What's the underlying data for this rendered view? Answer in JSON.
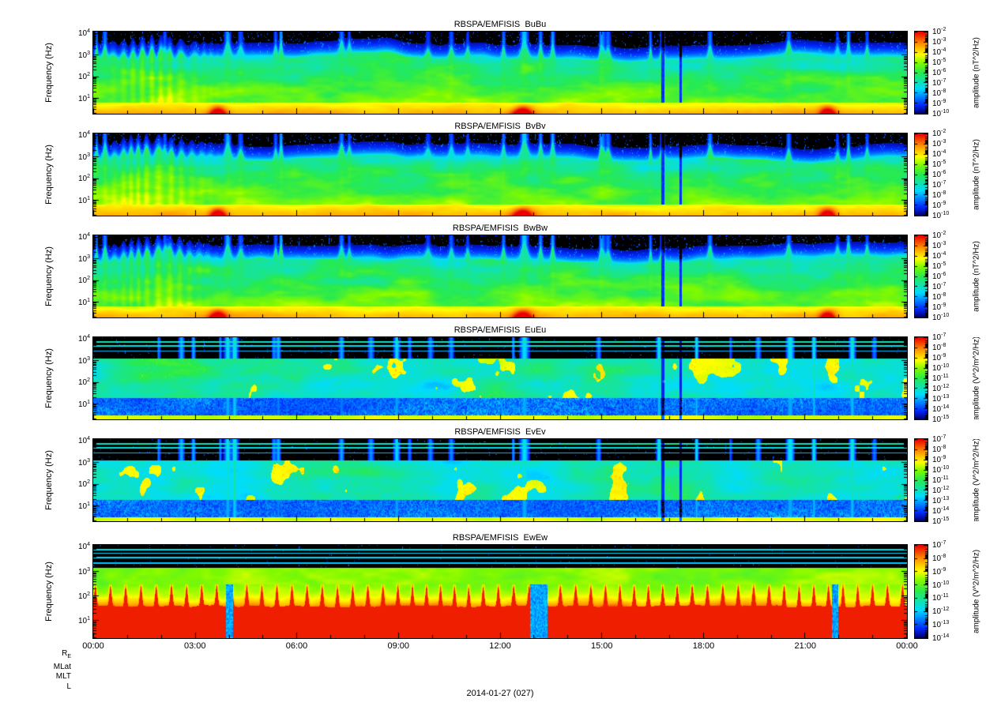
{
  "figure": {
    "date_label": "2014-01-27 (027)",
    "x_axis": {
      "ticks": [
        "00:00",
        "03:00",
        "06:00",
        "09:00",
        "12:00",
        "15:00",
        "18:00",
        "21:00",
        "00:00"
      ]
    },
    "ephemeris_labels": [
      "R_E",
      "MLat",
      "MLT",
      "L"
    ]
  },
  "y_axis": {
    "label": "Frequency (Hz)",
    "ticks": [
      "10^4",
      "10^3",
      "10^2",
      "10^1"
    ],
    "range_hz": [
      2,
      12000
    ]
  },
  "panels": [
    {
      "title": "RBSPA/EMFISIS  BuBu",
      "type": "B",
      "colorbar": {
        "label": "amplitude (nT^2/Hz)",
        "ticks": [
          "10^-2",
          "10^-3",
          "10^-4",
          "10^-5",
          "10^-6",
          "10^-7",
          "10^-8",
          "10^-9",
          "10^-10"
        ]
      }
    },
    {
      "title": "RBSPA/EMFISIS  BvBv",
      "type": "B",
      "colorbar": {
        "label": "amplitude (nT^2/Hz)",
        "ticks": [
          "10^-2",
          "10^-3",
          "10^-4",
          "10^-5",
          "10^-6",
          "10^-7",
          "10^-8",
          "10^-9",
          "10^-10"
        ]
      }
    },
    {
      "title": "RBSPA/EMFISIS  BwBw",
      "type": "B",
      "colorbar": {
        "label": "amplitude (nT^2/Hz)",
        "ticks": [
          "10^-2",
          "10^-3",
          "10^-4",
          "10^-5",
          "10^-6",
          "10^-7",
          "10^-8",
          "10^-9",
          "10^-10"
        ]
      }
    },
    {
      "title": "RBSPA/EMFISIS  EuEu",
      "type": "E",
      "colorbar": {
        "label": "amplitude (V^2/m^2/Hz)",
        "ticks": [
          "10^-7",
          "10^-8",
          "10^-9",
          "10^-10",
          "10^-11",
          "10^-12",
          "10^-13",
          "10^-14",
          "10^-15"
        ]
      }
    },
    {
      "title": "RBSPA/EMFISIS  EvEv",
      "type": "E",
      "colorbar": {
        "label": "amplitude (V^2/m^2/Hz)",
        "ticks": [
          "10^-7",
          "10^-8",
          "10^-9",
          "10^-10",
          "10^-11",
          "10^-12",
          "10^-13",
          "10^-14",
          "10^-15"
        ]
      }
    },
    {
      "title": "RBSPA/EMFISIS  EwEw",
      "type": "Ew",
      "colorbar": {
        "label": "amplitude (V^2/m^2/Hz)",
        "ticks": [
          "10^-7",
          "10^-8",
          "10^-9",
          "10^-10",
          "10^-11",
          "10^-12",
          "10^-13",
          "10^-14"
        ]
      }
    }
  ],
  "colors": {
    "background": "#ffffff",
    "axes": "#000000",
    "colormap": "rainbow (red=high, yellow, green, cyan, blue=low, black=below range)"
  },
  "chart_data": [
    {
      "type": "heatmap",
      "title": "RBSPA/EMFISIS  BuBu",
      "x": {
        "label": "UT 2014-01-27 (027)",
        "range_hours": [
          0,
          24
        ],
        "ticks": [
          "00:00",
          "03:00",
          "06:00",
          "09:00",
          "12:00",
          "15:00",
          "18:00",
          "21:00",
          "00:00"
        ]
      },
      "y": {
        "label": "Frequency (Hz)",
        "scale": "log",
        "range_hz": [
          2,
          12000
        ]
      },
      "z": {
        "label": "amplitude (nT^2/Hz)",
        "scale": "log",
        "min": "1e-10",
        "max": "1e-2"
      },
      "legend_position": "right colorbar",
      "grid": false,
      "features": [
        "yellow-orange band ~2-15 Hz across the full day (~1e-4..1e-3)",
        "red low-frequency enhancements near 03:40, 12:40 and 21:40 (~1e-2)",
        "diffuse green emission ~30-2000 Hz all day (~1e-6)",
        "quasi-periodic vertical striations 00:30-02:30 reaching ~3 kHz",
        "broadband blue/green bursts near 04:00, 06:30-07:30 and 12:40 reaching 10 kHz",
        "two narrow dropout notches near 16:50 and 17:20",
        "black background (below 1e-10) above ~3 kHz"
      ]
    },
    {
      "type": "heatmap",
      "title": "RBSPA/EMFISIS  BvBv",
      "x": {
        "label": "UT 2014-01-27 (027)",
        "range_hours": [
          0,
          24
        ],
        "ticks": [
          "00:00",
          "03:00",
          "06:00",
          "09:00",
          "12:00",
          "15:00",
          "18:00",
          "21:00",
          "00:00"
        ]
      },
      "y": {
        "label": "Frequency (Hz)",
        "scale": "log",
        "range_hz": [
          2,
          12000
        ]
      },
      "z": {
        "label": "amplitude (nT^2/Hz)",
        "scale": "log",
        "min": "1e-10",
        "max": "1e-2"
      },
      "legend_position": "right colorbar",
      "grid": false,
      "features": [
        "same morphology as BuBu: low-frequency yellow/red band, mid-frequency green emission, bursts near 04:00/12:40/21:40, dropouts near 17:00"
      ]
    },
    {
      "type": "heatmap",
      "title": "RBSPA/EMFISIS  BwBw",
      "x": {
        "label": "UT 2014-01-27 (027)",
        "range_hours": [
          0,
          24
        ],
        "ticks": [
          "00:00",
          "03:00",
          "06:00",
          "09:00",
          "12:00",
          "15:00",
          "18:00",
          "21:00",
          "00:00"
        ]
      },
      "y": {
        "label": "Frequency (Hz)",
        "scale": "log",
        "range_hz": [
          2,
          12000
        ]
      },
      "z": {
        "label": "amplitude (nT^2/Hz)",
        "scale": "log",
        "min": "1e-10",
        "max": "1e-2"
      },
      "legend_position": "right colorbar",
      "grid": false,
      "features": [
        "same morphology as BuBu/BvBv: low-frequency yellow band, diffuse green 30-2000 Hz, striations before 02:30, dropouts near 17:00"
      ]
    },
    {
      "type": "heatmap",
      "title": "RBSPA/EMFISIS  EuEu",
      "x": {
        "label": "UT 2014-01-27 (027)",
        "range_hours": [
          0,
          24
        ],
        "ticks": [
          "00:00",
          "03:00",
          "06:00",
          "09:00",
          "12:00",
          "15:00",
          "18:00",
          "21:00",
          "00:00"
        ]
      },
      "y": {
        "label": "Frequency (Hz)",
        "scale": "log",
        "range_hz": [
          2,
          12000
        ]
      },
      "z": {
        "label": "amplitude (V^2/m^2/Hz)",
        "scale": "log",
        "min": "1e-15",
        "max": "1e-7"
      },
      "legend_position": "right colorbar",
      "grid": false,
      "features": [
        "thin horizontal interference lines near 4-9 kHz over black background",
        "patchy green/yellow emission ~30-1000 Hz, strongest 00:00-08:00",
        "dense blue speckle background below ~30 Hz",
        "thin yellow line at the lowest frequencies (~2-3 Hz)",
        "broadband vertical bursts near 04:00 and 12:40 spanning all frequencies",
        "narrow dropouts near 16:50 and 17:20"
      ]
    },
    {
      "type": "heatmap",
      "title": "RBSPA/EMFISIS  EvEv",
      "x": {
        "label": "UT 2014-01-27 (027)",
        "range_hours": [
          0,
          24
        ],
        "ticks": [
          "00:00",
          "03:00",
          "06:00",
          "09:00",
          "12:00",
          "15:00",
          "18:00",
          "21:00",
          "00:00"
        ]
      },
      "y": {
        "label": "Frequency (Hz)",
        "scale": "log",
        "range_hz": [
          2,
          12000
        ]
      },
      "z": {
        "label": "amplitude (V^2/m^2/Hz)",
        "scale": "log",
        "min": "1e-15",
        "max": "1e-7"
      },
      "legend_position": "right colorbar",
      "grid": false,
      "features": [
        "same morphology as EuEu: interference lines at high frequency, patchy green/yellow mid band, blue speckle floor, bursts near 04:00 and 12:40"
      ]
    },
    {
      "type": "heatmap",
      "title": "RBSPA/EMFISIS  EwEw",
      "x": {
        "label": "UT 2014-01-27 (027)",
        "range_hours": [
          0,
          24
        ],
        "ticks": [
          "00:00",
          "03:00",
          "06:00",
          "09:00",
          "12:00",
          "15:00",
          "18:00",
          "21:00",
          "00:00"
        ]
      },
      "y": {
        "label": "Frequency (Hz)",
        "scale": "log",
        "range_hz": [
          2,
          12000
        ]
      },
      "z": {
        "label": "amplitude (V^2/m^2/Hz)",
        "scale": "log",
        "min": "1e-14",
        "max": "1e-7"
      },
      "legend_position": "right colorbar",
      "grid": false,
      "features": [
        "saturated solid red band below ~30 Hz with periodic spin-tone spikes reaching ~100-300 Hz",
        "red band interrupted near 04:00, ~13:00 and ~21:50 (blue columns)",
        "green/yellow emission band ~300-3000 Hz",
        "several cyan horizontal interference lines 3-9 kHz",
        "black above ~10 kHz"
      ]
    }
  ]
}
